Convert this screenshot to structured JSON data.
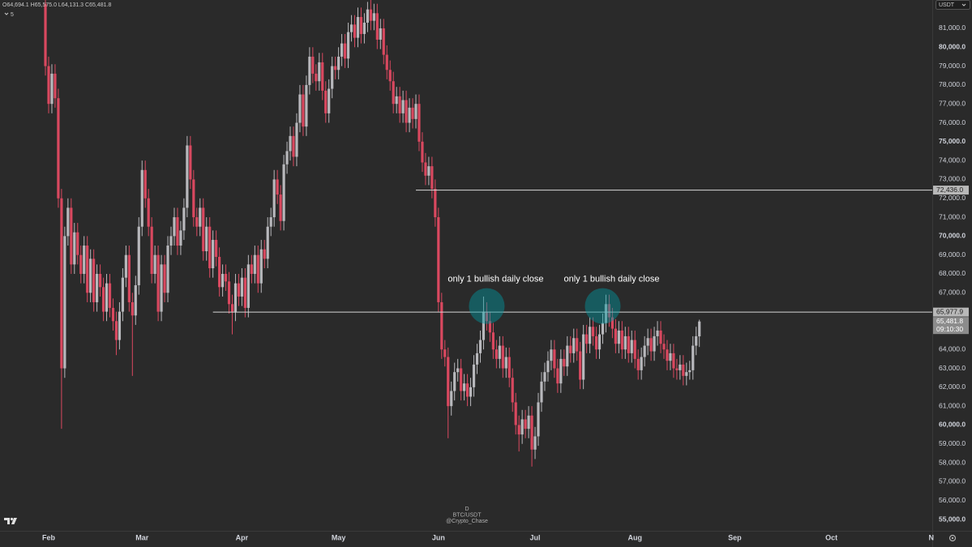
{
  "chart_data": {
    "type": "candlestick",
    "symbol": "BTC/USDT",
    "interval": "D",
    "author": "@Crypto_Chase",
    "currency": "USDT",
    "indicator_count": "5",
    "ohlc_labels": [
      "O64,694.1",
      "H65,575.0",
      "L64,131.3",
      "C65,481.8"
    ],
    "up_color": "#b8b8bc",
    "down_color": "#d9485f",
    "xlim": [
      -14.1,
      275.3
    ],
    "ylim": [
      54400,
      82500
    ],
    "xticks": [
      {
        "value": 1,
        "label": "Feb"
      },
      {
        "value": 30,
        "label": "Mar"
      },
      {
        "value": 61,
        "label": "Apr"
      },
      {
        "value": 91,
        "label": "May"
      },
      {
        "value": 122,
        "label": "Jun"
      },
      {
        "value": 152,
        "label": "Jul"
      },
      {
        "value": 183,
        "label": "Aug"
      },
      {
        "value": 214,
        "label": "Sep"
      },
      {
        "value": 244,
        "label": "Oct"
      },
      {
        "value": 275,
        "label": "N"
      }
    ],
    "yticks": [
      {
        "value": 55000,
        "label": "55,000.0"
      },
      {
        "value": 56000,
        "label": "56,000.0"
      },
      {
        "value": 57000,
        "label": "57,000.0"
      },
      {
        "value": 58000,
        "label": "58,000.0"
      },
      {
        "value": 59000,
        "label": "59,000.0"
      },
      {
        "value": 60000,
        "label": "60,000.0"
      },
      {
        "value": 61000,
        "label": "61,000.0"
      },
      {
        "value": 62000,
        "label": "62,000.0"
      },
      {
        "value": 63000,
        "label": "63,000.0"
      },
      {
        "value": 64000,
        "label": "64,000.0"
      },
      {
        "value": 67000,
        "label": "67,000.0"
      },
      {
        "value": 68000,
        "label": "68,000.0"
      },
      {
        "value": 69000,
        "label": "69,000.0"
      },
      {
        "value": 70000,
        "label": "70,000.0"
      },
      {
        "value": 71000,
        "label": "71,000.0"
      },
      {
        "value": 72000,
        "label": "72,000.0"
      },
      {
        "value": 73000,
        "label": "73,000.0"
      },
      {
        "value": 74000,
        "label": "74,000.0"
      },
      {
        "value": 75000,
        "label": "75,000.0"
      },
      {
        "value": 76000,
        "label": "76,000.0"
      },
      {
        "value": 77000,
        "label": "77,000.0"
      },
      {
        "value": 78000,
        "label": "78,000.0"
      },
      {
        "value": 79000,
        "label": "79,000.0"
      },
      {
        "value": 80000,
        "label": "80,000.0"
      },
      {
        "value": 81000,
        "label": "81,000.0"
      }
    ],
    "hlines": [
      {
        "value": 72436.0,
        "label": "72,436.0",
        "from": 115
      },
      {
        "value": 65977.9,
        "label": "65,977.9",
        "from": 52
      }
    ],
    "last_price": {
      "label": "65,481.8",
      "countdown": "09:10:30"
    },
    "annotations": [
      {
        "text": "only 1 bullish daily close",
        "x": 137,
        "y": 66300
      },
      {
        "text": "only 1 bullish daily close",
        "x": 173,
        "y": 66300
      }
    ],
    "ohlc": [
      [
        82300,
        82500,
        78500,
        79000
      ],
      [
        79000,
        79500,
        76500,
        77000
      ],
      [
        77000,
        79100,
        76500,
        78600
      ],
      [
        78600,
        79100,
        76800,
        77300
      ],
      [
        77300,
        77800,
        71500,
        72000
      ],
      [
        72000,
        72500,
        59800,
        63000
      ],
      [
        63000,
        70500,
        62500,
        70000
      ],
      [
        70000,
        72000,
        69500,
        71500
      ],
      [
        71500,
        72000,
        68000,
        68500
      ],
      [
        68500,
        70700,
        68000,
        70200
      ],
      [
        70200,
        70700,
        68500,
        69000
      ],
      [
        69000,
        69500,
        67500,
        68000
      ],
      [
        68000,
        70000,
        67500,
        69500
      ],
      [
        69500,
        70000,
        66500,
        67000
      ],
      [
        67000,
        69300,
        66500,
        68800
      ],
      [
        68800,
        69300,
        66000,
        66500
      ],
      [
        66500,
        68500,
        66000,
        68000
      ],
      [
        68000,
        68500,
        66800,
        67300
      ],
      [
        67300,
        67800,
        65500,
        66000
      ],
      [
        66000,
        68000,
        65500,
        67500
      ],
      [
        67500,
        68000,
        65700,
        66200
      ],
      [
        66200,
        66700,
        65000,
        65500
      ],
      [
        65500,
        66000,
        63700,
        64500
      ],
      [
        64500,
        66500,
        64000,
        66000
      ],
      [
        66000,
        68300,
        65500,
        67800
      ],
      [
        67800,
        69500,
        67300,
        69000
      ],
      [
        69000,
        69500,
        66000,
        66500
      ],
      [
        66500,
        67000,
        62600,
        65800
      ],
      [
        65800,
        67900,
        65300,
        67400
      ],
      [
        67400,
        71000,
        66900,
        70500
      ],
      [
        70500,
        74000,
        70000,
        73500
      ],
      [
        73500,
        74000,
        71500,
        72000
      ],
      [
        72000,
        72500,
        70000,
        70500
      ],
      [
        70500,
        71000,
        67500,
        68000
      ],
      [
        68000,
        69500,
        67500,
        69000
      ],
      [
        69000,
        69500,
        65500,
        66000
      ],
      [
        66000,
        69000,
        65500,
        68500
      ],
      [
        68500,
        69000,
        66500,
        67000
      ],
      [
        67000,
        70000,
        66500,
        69500
      ],
      [
        69500,
        70500,
        69000,
        70000
      ],
      [
        70000,
        71500,
        69500,
        71000
      ],
      [
        71000,
        71500,
        69000,
        69500
      ],
      [
        69500,
        70800,
        69000,
        70300
      ],
      [
        70300,
        72000,
        69800,
        71500
      ],
      [
        71500,
        75300,
        71000,
        74800
      ],
      [
        74800,
        75300,
        72500,
        73000
      ],
      [
        73000,
        73500,
        70500,
        71000
      ],
      [
        71000,
        71500,
        70000,
        70500
      ],
      [
        70500,
        72000,
        70000,
        71500
      ],
      [
        71500,
        72000,
        68700,
        69200
      ],
      [
        69200,
        71000,
        68700,
        70500
      ],
      [
        70500,
        71000,
        67800,
        68300
      ],
      [
        68300,
        70300,
        67800,
        69800
      ],
      [
        69800,
        70300,
        68400,
        68900
      ],
      [
        68900,
        69400,
        66800,
        67300
      ],
      [
        67300,
        68500,
        66800,
        68000
      ],
      [
        68000,
        68500,
        67100,
        67600
      ],
      [
        67600,
        68100,
        65900,
        66400
      ],
      [
        66400,
        66900,
        64800,
        66000
      ],
      [
        66000,
        68000,
        65500,
        67500
      ],
      [
        67500,
        68000,
        66300,
        66800
      ],
      [
        66800,
        68300,
        66300,
        67800
      ],
      [
        67800,
        68300,
        65700,
        66200
      ],
      [
        66200,
        69000,
        65700,
        68500
      ],
      [
        68500,
        69000,
        67500,
        68000
      ],
      [
        68000,
        69500,
        67500,
        69000
      ],
      [
        69000,
        69500,
        67000,
        67500
      ],
      [
        67500,
        69800,
        67000,
        69300
      ],
      [
        69300,
        69800,
        68300,
        68800
      ],
      [
        68800,
        71000,
        68300,
        70500
      ],
      [
        70500,
        71500,
        70000,
        71000
      ],
      [
        71000,
        73500,
        70500,
        73000
      ],
      [
        73000,
        73500,
        71700,
        72200
      ],
      [
        72200,
        72700,
        70300,
        70800
      ],
      [
        70800,
        74300,
        70300,
        73800
      ],
      [
        73800,
        75000,
        73300,
        74500
      ],
      [
        74500,
        75800,
        74000,
        75300
      ],
      [
        75300,
        75800,
        73700,
        74200
      ],
      [
        74200,
        76500,
        73700,
        76000
      ],
      [
        76000,
        78000,
        75500,
        77500
      ],
      [
        77500,
        78000,
        75300,
        75800
      ],
      [
        75800,
        78500,
        75300,
        78000
      ],
      [
        78000,
        80000,
        77500,
        79500
      ],
      [
        79500,
        80000,
        78100,
        78600
      ],
      [
        78600,
        79100,
        77700,
        78200
      ],
      [
        78200,
        79700,
        77700,
        79200
      ],
      [
        79200,
        79700,
        77200,
        77700
      ],
      [
        77700,
        78200,
        76000,
        76500
      ],
      [
        76500,
        78300,
        76000,
        77800
      ],
      [
        77800,
        79500,
        77300,
        79000
      ],
      [
        79000,
        79500,
        78300,
        78800
      ],
      [
        78800,
        80000,
        78300,
        79500
      ],
      [
        79500,
        80700,
        79000,
        80200
      ],
      [
        80200,
        80700,
        78900,
        79400
      ],
      [
        79400,
        81300,
        78900,
        80800
      ],
      [
        80800,
        81700,
        80300,
        81200
      ],
      [
        81200,
        81700,
        80000,
        80500
      ],
      [
        80500,
        82100,
        80000,
        81600
      ],
      [
        81600,
        82100,
        80200,
        80700
      ],
      [
        80700,
        81800,
        80200,
        81300
      ],
      [
        81300,
        82400,
        80800,
        82000
      ],
      [
        82000,
        82500,
        80900,
        81400
      ],
      [
        81400,
        82300,
        80900,
        81800
      ],
      [
        81800,
        82300,
        79900,
        80400
      ],
      [
        80400,
        81500,
        79900,
        81000
      ],
      [
        81000,
        81500,
        79100,
        79600
      ],
      [
        79600,
        80100,
        78300,
        78800
      ],
      [
        78800,
        79300,
        77700,
        78200
      ],
      [
        78200,
        78700,
        76500,
        77000
      ],
      [
        77000,
        77900,
        76500,
        77400
      ],
      [
        77400,
        77900,
        76000,
        76500
      ],
      [
        76500,
        77700,
        76000,
        77200
      ],
      [
        77200,
        77700,
        75500,
        76000
      ],
      [
        76000,
        77300,
        75500,
        76800
      ],
      [
        76800,
        77300,
        75700,
        76200
      ],
      [
        76200,
        77500,
        75700,
        77000
      ],
      [
        77000,
        77500,
        74500,
        75000
      ],
      [
        75000,
        75500,
        73400,
        73900
      ],
      [
        73900,
        74400,
        72700,
        73200
      ],
      [
        73200,
        74200,
        72700,
        73700
      ],
      [
        73700,
        74200,
        72000,
        72500
      ],
      [
        72500,
        73000,
        70500,
        71000
      ],
      [
        71000,
        71500,
        66000,
        66500
      ],
      [
        66500,
        67000,
        63500,
        64000
      ],
      [
        64000,
        64500,
        63100,
        63600
      ],
      [
        63600,
        64100,
        59300,
        61000
      ],
      [
        61000,
        62300,
        60500,
        61800
      ],
      [
        61800,
        63300,
        61300,
        62800
      ],
      [
        62800,
        63500,
        62300,
        63000
      ],
      [
        63000,
        63500,
        61300,
        61800
      ],
      [
        61800,
        62700,
        61300,
        62200
      ],
      [
        62200,
        62700,
        61000,
        61500
      ],
      [
        61500,
        62500,
        61000,
        62000
      ],
      [
        62000,
        63700,
        61500,
        63200
      ],
      [
        63200,
        64300,
        62700,
        63800
      ],
      [
        63800,
        65000,
        63300,
        64500
      ],
      [
        64500,
        66800,
        64000,
        66000
      ],
      [
        66000,
        66500,
        65000,
        65500
      ],
      [
        65500,
        66000,
        64400,
        64900
      ],
      [
        64900,
        65400,
        63500,
        64000
      ],
      [
        64000,
        64500,
        63000,
        63500
      ],
      [
        63500,
        64700,
        63000,
        64200
      ],
      [
        64200,
        64700,
        62500,
        63000
      ],
      [
        63000,
        64100,
        62500,
        63600
      ],
      [
        63600,
        64100,
        62000,
        62500
      ],
      [
        62500,
        63000,
        60700,
        61200
      ],
      [
        61200,
        61700,
        59500,
        60000
      ],
      [
        60000,
        60500,
        58600,
        59500
      ],
      [
        59500,
        60800,
        59000,
        60300
      ],
      [
        60300,
        60800,
        59300,
        59800
      ],
      [
        59800,
        61000,
        59300,
        60500
      ],
      [
        60500,
        61000,
        57800,
        58700
      ],
      [
        58700,
        59900,
        58200,
        59400
      ],
      [
        59400,
        61700,
        58900,
        61200
      ],
      [
        61200,
        62800,
        60700,
        62300
      ],
      [
        62300,
        63300,
        61800,
        62800
      ],
      [
        62800,
        63900,
        62300,
        63400
      ],
      [
        63400,
        64500,
        62900,
        64000
      ],
      [
        64000,
        64500,
        62500,
        63000
      ],
      [
        63000,
        63500,
        61700,
        62200
      ],
      [
        62200,
        64000,
        61700,
        63500
      ],
      [
        63500,
        64000,
        62600,
        63100
      ],
      [
        63100,
        64700,
        62600,
        64200
      ],
      [
        64200,
        64700,
        63300,
        63800
      ],
      [
        63800,
        65100,
        63300,
        64600
      ],
      [
        64600,
        65100,
        63400,
        63900
      ],
      [
        63900,
        64400,
        61900,
        62400
      ],
      [
        62400,
        65300,
        61900,
        64800
      ],
      [
        64800,
        65300,
        63800,
        64300
      ],
      [
        64300,
        65700,
        63800,
        65200
      ],
      [
        65200,
        65700,
        64200,
        64700
      ],
      [
        64700,
        65200,
        63500,
        64000
      ],
      [
        64000,
        65300,
        63500,
        64800
      ],
      [
        64800,
        65900,
        64300,
        65400
      ],
      [
        65400,
        66900,
        64900,
        66400
      ],
      [
        66400,
        66900,
        65200,
        65700
      ],
      [
        65700,
        66200,
        64600,
        65100
      ],
      [
        65100,
        65600,
        63800,
        64300
      ],
      [
        64300,
        65500,
        63800,
        65000
      ],
      [
        65000,
        65500,
        63500,
        64000
      ],
      [
        64000,
        65200,
        63500,
        64700
      ],
      [
        64700,
        65200,
        63300,
        63800
      ],
      [
        63800,
        65000,
        63300,
        64500
      ],
      [
        64500,
        65000,
        63000,
        63500
      ],
      [
        63500,
        64000,
        62400,
        62900
      ],
      [
        62900,
        64100,
        62400,
        63600
      ],
      [
        63600,
        64700,
        63100,
        64200
      ],
      [
        64200,
        65100,
        63700,
        64600
      ],
      [
        64600,
        65100,
        63400,
        63900
      ],
      [
        63900,
        65200,
        63400,
        64700
      ],
      [
        64700,
        65500,
        64200,
        65000
      ],
      [
        65000,
        65500,
        63800,
        64300
      ],
      [
        64300,
        64800,
        63500,
        64000
      ],
      [
        64000,
        64500,
        62900,
        63400
      ],
      [
        63400,
        64300,
        62900,
        63800
      ],
      [
        63800,
        64300,
        62500,
        63000
      ],
      [
        63000,
        63500,
        62400,
        62900
      ],
      [
        62900,
        63700,
        62400,
        63200
      ],
      [
        63200,
        63700,
        62100,
        62600
      ],
      [
        62600,
        63300,
        62100,
        62800
      ],
      [
        62800,
        63400,
        62400,
        62900
      ],
      [
        62900,
        64700,
        62400,
        64200
      ],
      [
        64200,
        65200,
        63700,
        64700
      ],
      [
        64694.1,
        65575.0,
        64131.3,
        65481.8
      ]
    ]
  }
}
